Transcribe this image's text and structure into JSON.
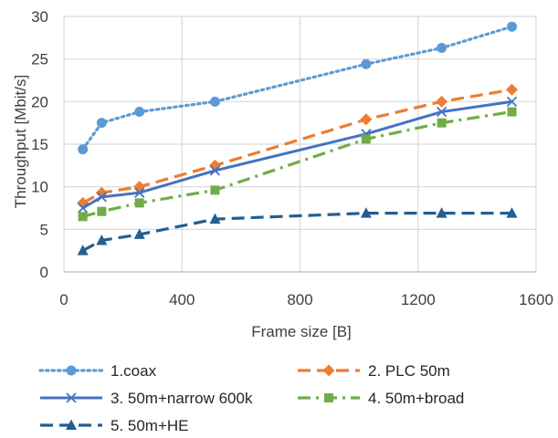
{
  "chart_data": {
    "type": "line",
    "xlabel": "Frame size [B]",
    "ylabel": "Throughput [Mbit/s]",
    "xlim": [
      0,
      1600
    ],
    "ylim": [
      0,
      30
    ],
    "x_ticks": [
      "0",
      "400",
      "800",
      "1200",
      "1600"
    ],
    "y_ticks": [
      "0",
      "5",
      "10",
      "15",
      "20",
      "25",
      "30"
    ],
    "grid": true,
    "legend_position": "bottom",
    "series": [
      {
        "name": "1.coax",
        "color": "#5B9BD5",
        "line_style": "dotted",
        "marker": "circle",
        "x": [
          64,
          128,
          256,
          512,
          1024,
          1280,
          1518
        ],
        "y": [
          14.4,
          17.5,
          18.8,
          20.0,
          24.4,
          26.3,
          28.8
        ]
      },
      {
        "name": "2. PLC 50m",
        "color": "#ED7D31",
        "line_style": "dashed",
        "marker": "diamond",
        "x": [
          64,
          128,
          256,
          512,
          1024,
          1280,
          1518
        ],
        "y": [
          8.1,
          9.3,
          10.0,
          12.5,
          17.9,
          20.0,
          21.4
        ]
      },
      {
        "name": "3. 50m+narrow 600k",
        "color": "#4472C4",
        "line_style": "solid",
        "marker": "x",
        "x": [
          64,
          128,
          256,
          512,
          1024,
          1280,
          1518
        ],
        "y": [
          7.5,
          8.8,
          9.3,
          11.9,
          16.2,
          18.8,
          20.0
        ]
      },
      {
        "name": "4. 50m+broad",
        "color": "#70AD47",
        "line_style": "dashdot",
        "marker": "square",
        "x": [
          64,
          128,
          256,
          512,
          1024,
          1280,
          1518
        ],
        "y": [
          6.5,
          7.1,
          8.1,
          9.6,
          15.6,
          17.5,
          18.8
        ]
      },
      {
        "name": "5. 50m+HE",
        "color": "#255E91",
        "line_style": "dashed",
        "marker": "triangle",
        "x": [
          64,
          128,
          256,
          512,
          1024,
          1280,
          1518
        ],
        "y": [
          2.5,
          3.7,
          4.4,
          6.2,
          6.9,
          6.9,
          6.9
        ]
      }
    ]
  }
}
